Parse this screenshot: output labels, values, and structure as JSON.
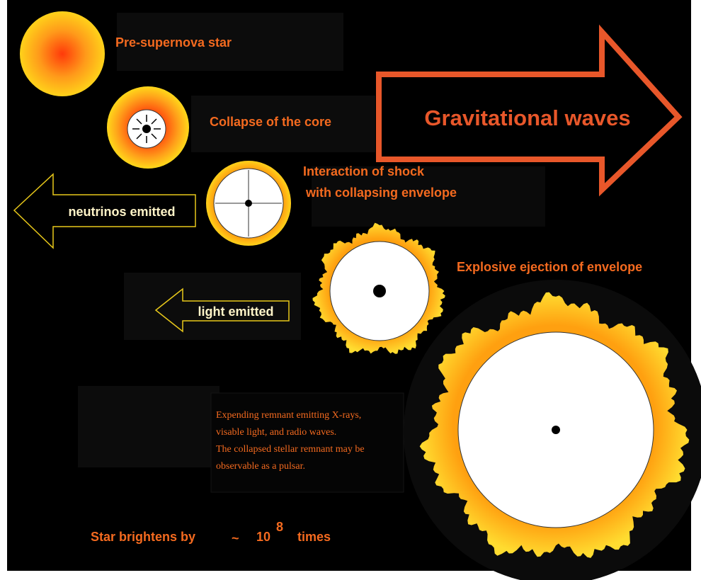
{
  "stages": [
    {
      "label": "Pre-supernova star"
    },
    {
      "label": "Collapse of the core"
    },
    {
      "label_lines": [
        "Interaction of shock",
        "with collapsing envelope"
      ]
    },
    {
      "label": "Explosive ejection of envelope"
    }
  ],
  "arrows": {
    "gravitational": "Gravitational waves",
    "neutrinos": "neutrinos emitted",
    "light": "light emitted"
  },
  "remnant": {
    "lines": [
      "Expending remnant emitting X-rays,",
      "visable light, and radio waves.",
      "The collapsed stellar remnant may be",
      "observable as a pulsar."
    ]
  },
  "brightness": {
    "prefix": "Star brightens by",
    "symbol": "~",
    "base": "10",
    "exponent": "8",
    "suffix": "times"
  }
}
